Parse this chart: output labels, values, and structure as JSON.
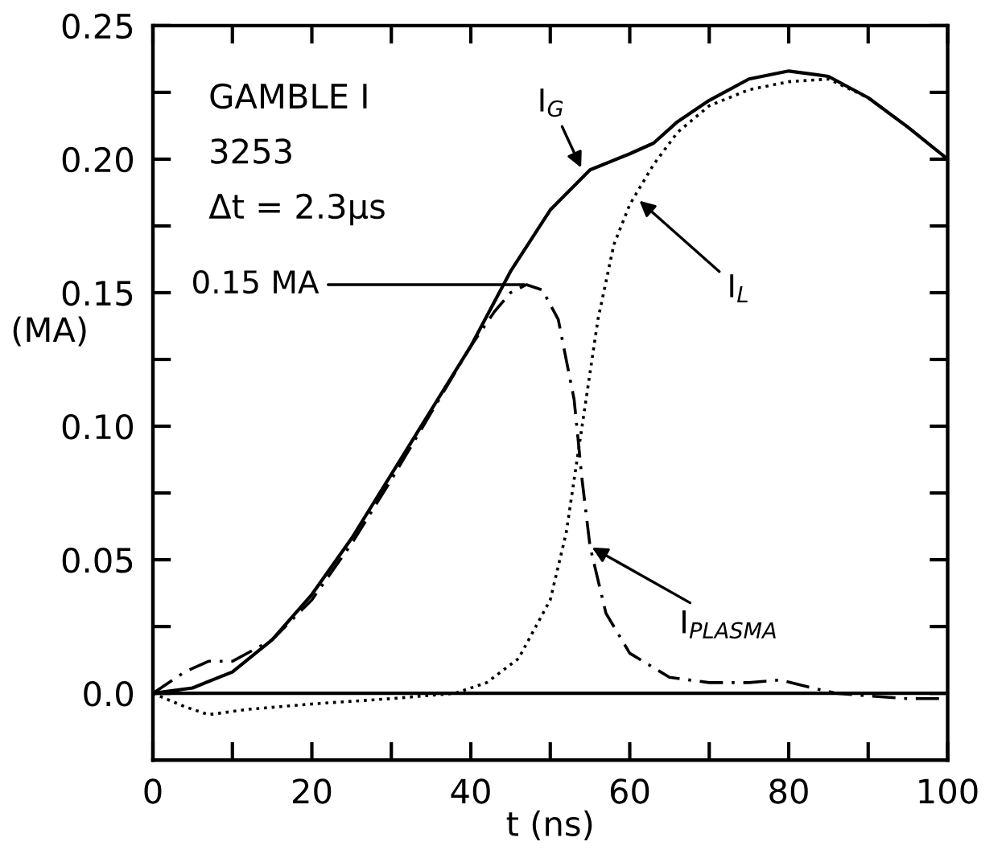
{
  "chart_data": {
    "type": "line",
    "xlabel": "t (ns)",
    "ylabel": "(MA)",
    "xlim": [
      0,
      100
    ],
    "xticks": [
      0,
      {
        "value": 10,
        "label": null
      },
      20,
      {
        "value": 30,
        "label": null
      },
      40,
      {
        "value": 50,
        "label": null
      },
      60,
      {
        "value": 70,
        "label": null
      },
      80,
      {
        "value": 90,
        "label": null
      },
      100
    ],
    "ylim": [
      -0.025,
      0.25
    ],
    "yticks": [
      {
        "value": 0,
        "label": "0.0"
      },
      {
        "value": 0.025,
        "label": null
      },
      0.05,
      {
        "value": 0.075,
        "label": null
      },
      {
        "value": 0.1,
        "label": "0.10"
      },
      {
        "value": 0.125,
        "label": null
      },
      0.15,
      {
        "value": 0.175,
        "label": null
      },
      {
        "value": 0.2,
        "label": "0.20"
      },
      {
        "value": 0.225,
        "label": null
      },
      0.25
    ],
    "grid": false,
    "legend": false,
    "marker": "none",
    "ref_lines": [
      {
        "axis": "y",
        "value": 0,
        "color": "#000000",
        "line_style": "solid"
      }
    ],
    "series": [
      {
        "color": "#000000",
        "line_style": "solid",
        "x": [
          0,
          5,
          10,
          15,
          20,
          25,
          30,
          35,
          40,
          45,
          50,
          55,
          60,
          63,
          66,
          70,
          75,
          80,
          85,
          90,
          95,
          100
        ],
        "values": [
          0,
          0.002,
          0.008,
          0.02,
          0.037,
          0.058,
          0.082,
          0.106,
          0.13,
          0.158,
          0.181,
          0.196,
          0.202,
          0.206,
          0.214,
          0.222,
          0.23,
          0.233,
          0.231,
          0.223,
          0.212,
          0.2
        ]
      },
      {
        "color": "#000000",
        "line_style": "dotted",
        "x": [
          0,
          4,
          7,
          12,
          20,
          30,
          38,
          42,
          46,
          50,
          52,
          54,
          56,
          58,
          60,
          63,
          66,
          70,
          75,
          80,
          85,
          90,
          95,
          100
        ],
        "values": [
          0,
          -0.005,
          -0.008,
          -0.006,
          -0.004,
          -0.002,
          0,
          0.004,
          0.013,
          0.035,
          0.06,
          0.1,
          0.14,
          0.168,
          0.183,
          0.198,
          0.21,
          0.22,
          0.226,
          0.229,
          0.23,
          0.223,
          0.212,
          0.2
        ]
      },
      {
        "color": "#000000",
        "line_style": "dashdot",
        "x": [
          0,
          4,
          7,
          10,
          15,
          20,
          25,
          30,
          35,
          40,
          43,
          45,
          47,
          49,
          51,
          53,
          54,
          55,
          57,
          60,
          65,
          70,
          75,
          79,
          83,
          86,
          90,
          95,
          100
        ],
        "values": [
          0,
          0.008,
          0.012,
          0.012,
          0.02,
          0.035,
          0.056,
          0.08,
          0.105,
          0.13,
          0.143,
          0.15,
          0.153,
          0.151,
          0.14,
          0.11,
          0.08,
          0.055,
          0.03,
          0.015,
          0.006,
          0.004,
          0.004,
          0.005,
          0.002,
          0,
          -0.001,
          -0.002,
          -0.002
        ]
      }
    ],
    "annotations": [
      "GAMBLE I",
      "3253",
      "Δt = 2.3μs",
      {
        "text": "I$_{G}$",
        "x": 54,
        "y": 0.196
      },
      {
        "text": "I$_{L}$",
        "x": 61,
        "y": 0.185
      },
      {
        "text": "0.15 MA",
        "x": 47,
        "y": 0.153
      },
      {
        "text": "I$_{PLASMA}$",
        "x": 55,
        "y": 0.055
      }
    ]
  }
}
